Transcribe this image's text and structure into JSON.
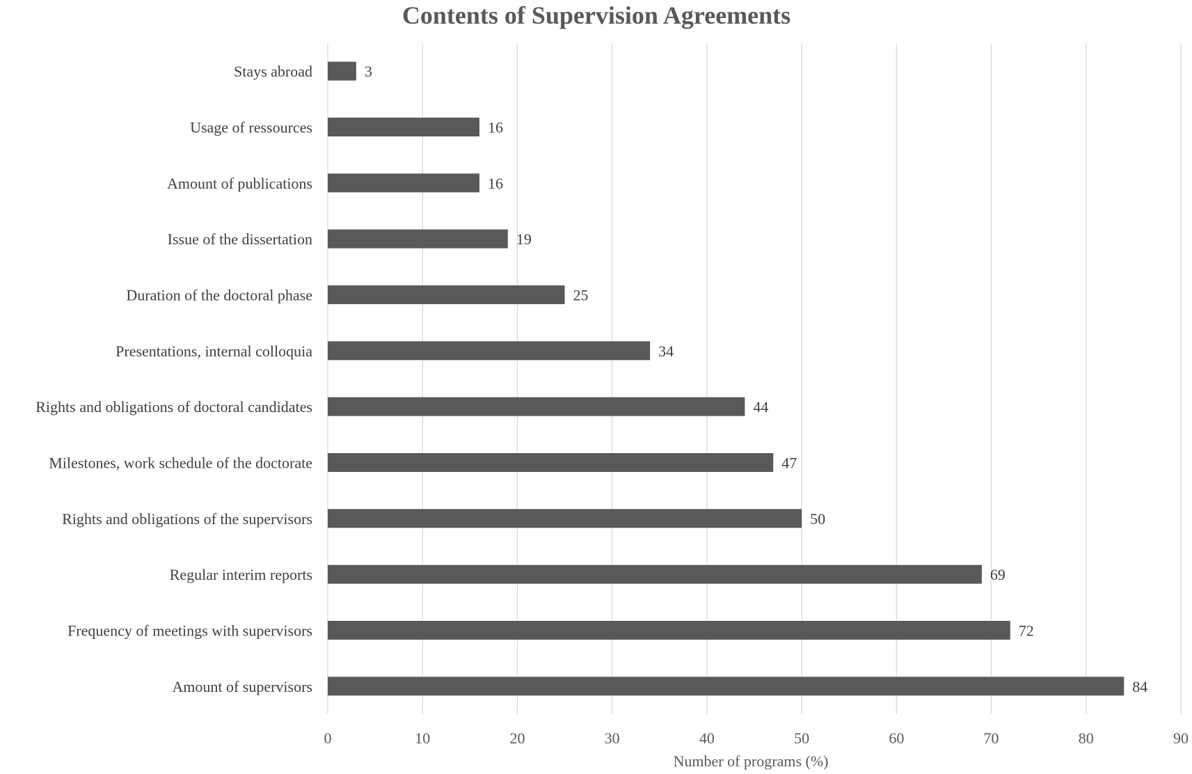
{
  "chart_data": {
    "type": "bar",
    "orientation": "horizontal",
    "title": "Contents of Supervision Agreements",
    "xlabel": "Number of programs (%)",
    "ylabel": "",
    "xlim": [
      0,
      90
    ],
    "ticks": [
      0,
      10,
      20,
      30,
      40,
      50,
      60,
      70,
      80,
      90
    ],
    "grid": true,
    "legend": "none",
    "bar_color": "#595959",
    "categories": [
      "Stays abroad",
      "Usage of ressources",
      "Amount of publications",
      "Issue of the dissertation",
      "Duration of the doctoral phase",
      "Presentations, internal colloquia",
      "Rights and obligations of doctoral candidates",
      "Milestones, work schedule of the doctorate",
      "Rights and obligations of the supervisors",
      "Regular interim reports",
      "Frequency of meetings with supervisors",
      "Amount of supervisors"
    ],
    "values": [
      3,
      16,
      16,
      19,
      25,
      34,
      44,
      47,
      50,
      69,
      72,
      84
    ]
  }
}
